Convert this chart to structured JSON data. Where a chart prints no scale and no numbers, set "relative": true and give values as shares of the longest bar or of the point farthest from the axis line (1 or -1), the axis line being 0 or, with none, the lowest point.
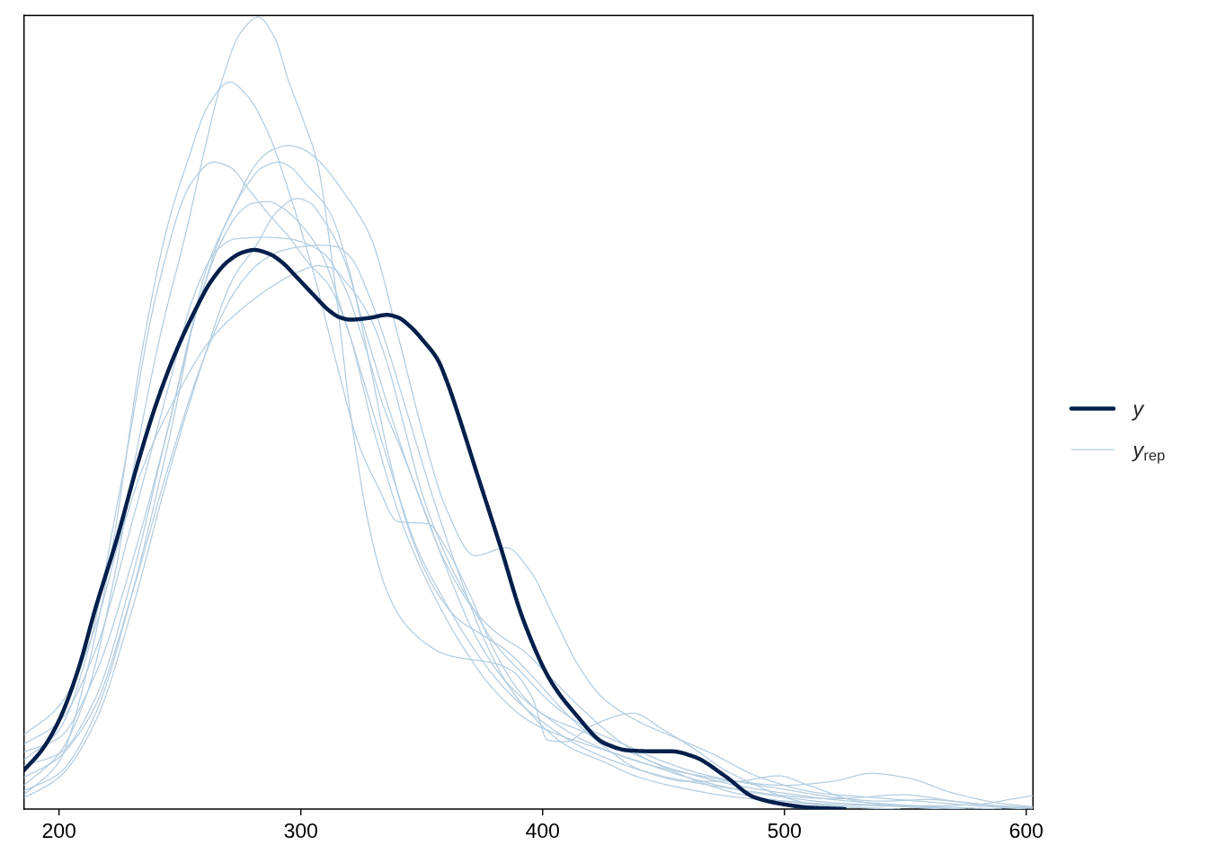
{
  "chart_data": {
    "type": "line",
    "relative": true,
    "xlim": [
      185.5,
      602.8
    ],
    "xticks": [
      200,
      300,
      400,
      500,
      600
    ],
    "tick_labels": "x",
    "legend": "right",
    "grid": false,
    "series": [
      {
        "name": "y",
        "color": "#011f4b",
        "x": [
          185.5,
          193,
          200,
          207.8,
          215.2,
          223.9,
          232.4,
          240,
          248,
          256,
          263,
          270,
          276,
          280.7,
          287,
          292,
          298.5,
          305,
          311.9,
          316,
          320.4,
          328,
          335.6,
          340,
          345.7,
          351,
          356.5,
          361,
          365,
          372.4,
          382.4,
          392.1,
          403.3,
          413.3,
          425.6,
          435.6,
          445,
          453,
          462.7,
          475.3,
          487.5,
          499.8,
          510,
          525
        ],
        "values": [
          0.049,
          0.075,
          0.112,
          0.175,
          0.255,
          0.341,
          0.435,
          0.51,
          0.575,
          0.628,
          0.667,
          0.692,
          0.703,
          0.706,
          0.701,
          0.691,
          0.671,
          0.65,
          0.629,
          0.621,
          0.618,
          0.62,
          0.624,
          0.621,
          0.608,
          0.59,
          0.568,
          0.535,
          0.499,
          0.428,
          0.333,
          0.238,
          0.162,
          0.121,
          0.083,
          0.074,
          0.073,
          0.073,
          0.066,
          0.042,
          0.015,
          0.006,
          0.002,
          0
        ]
      },
      {
        "name": "y$_{rep}$",
        "color": "#b3cde0",
        "x": [
          185.5,
          200,
          212,
          222,
          232,
          242,
          252.8,
          260,
          267.2,
          275,
          282.4,
          289,
          295.1,
          301,
          306.9,
          313,
          320.5,
          328,
          335,
          341.6,
          351.3,
          360,
          367.6,
          378.7,
          387.2,
          395.8,
          402.1,
          409.5,
          420.7,
          437.4,
          450,
          462.7,
          475,
          487.5,
          500,
          512.3,
          530,
          548
        ],
        "values": [
          0.03,
          0.07,
          0.15,
          0.28,
          0.45,
          0.6,
          0.732,
          0.83,
          0.918,
          0.98,
          1.0,
          0.975,
          0.918,
          0.87,
          0.815,
          0.69,
          0.5,
          0.36,
          0.28,
          0.24,
          0.21,
          0.195,
          0.19,
          0.185,
          0.175,
          0.14,
          0.087,
          0.085,
          0.106,
          0.121,
          0.1,
          0.076,
          0.05,
          0.031,
          0.015,
          0.006,
          0.002,
          0
        ]
      },
      {
        "color": "#b3cde0",
        "x": [
          185.5,
          200,
          212,
          222,
          234.3,
          244.5,
          252.8,
          262,
          270.6,
          278,
          287,
          295,
          305,
          315,
          324,
          331.6,
          340.2,
          352.7,
          360,
          370,
          380,
          390,
          400,
          415,
          430,
          445,
          460,
          480,
          500,
          520,
          545
        ],
        "values": [
          0.018,
          0.06,
          0.18,
          0.33,
          0.578,
          0.732,
          0.815,
          0.89,
          0.918,
          0.9,
          0.85,
          0.78,
          0.68,
          0.56,
          0.46,
          0.409,
          0.363,
          0.36,
          0.33,
          0.27,
          0.2,
          0.15,
          0.12,
          0.1,
          0.08,
          0.06,
          0.04,
          0.02,
          0.01,
          0.004,
          0
        ]
      },
      {
        "color": "#b3cde0",
        "x": [
          185.5,
          200,
          212,
          225,
          241,
          254.6,
          263.9,
          271,
          278.1,
          287,
          295.2,
          303,
          311.9,
          320,
          330,
          342,
          355,
          368,
          380,
          395,
          410,
          425,
          440,
          460,
          480,
          500,
          520,
          540,
          570,
          590
        ],
        "values": [
          0.062,
          0.1,
          0.2,
          0.4,
          0.66,
          0.79,
          0.817,
          0.81,
          0.784,
          0.75,
          0.722,
          0.69,
          0.66,
          0.6,
          0.48,
          0.36,
          0.27,
          0.2,
          0.15,
          0.11,
          0.09,
          0.075,
          0.06,
          0.04,
          0.025,
          0.015,
          0.008,
          0.005,
          0.002,
          0
        ]
      },
      {
        "color": "#b3cde0",
        "x": [
          185.5,
          200,
          215,
          230,
          245,
          261.4,
          271.4,
          281.6,
          288,
          295.1,
          301,
          306.9,
          318.8,
          328.9,
          340,
          350,
          360,
          372,
          385,
          395,
          405,
          415,
          425,
          440,
          455,
          470,
          490,
          515,
          535,
          555,
          580,
          600
        ],
        "values": [
          0.023,
          0.045,
          0.12,
          0.27,
          0.46,
          0.686,
          0.754,
          0.815,
          0.832,
          0.838,
          0.833,
          0.82,
          0.774,
          0.722,
          0.6,
          0.48,
          0.38,
          0.32,
          0.33,
          0.3,
          0.24,
          0.18,
          0.14,
          0.11,
          0.09,
          0.07,
          0.04,
          0.02,
          0.015,
          0.01,
          0.004,
          0
        ]
      },
      {
        "color": "#b3cde0",
        "x": [
          185.5,
          200,
          215,
          230,
          245,
          258,
          268,
          278.2,
          284,
          290.9,
          296,
          301.9,
          311.9,
          320,
          328,
          336,
          345,
          355,
          365,
          375,
          385,
          395,
          410,
          425,
          440,
          460,
          480,
          497.5,
          510,
          530,
          550,
          565
        ],
        "values": [
          0.055,
          0.07,
          0.14,
          0.29,
          0.48,
          0.64,
          0.733,
          0.79,
          0.81,
          0.817,
          0.81,
          0.79,
          0.754,
          0.68,
          0.57,
          0.45,
          0.35,
          0.28,
          0.24,
          0.22,
          0.2,
          0.17,
          0.12,
          0.08,
          0.05,
          0.035,
          0.035,
          0.042,
          0.03,
          0.01,
          0.003,
          0
        ]
      },
      {
        "color": "#b3cde0",
        "x": [
          185.5,
          200,
          215,
          230,
          245,
          256,
          266.4,
          274.8,
          280,
          286.6,
          292,
          298.5,
          308.5,
          318,
          328,
          338,
          348,
          360,
          372,
          385,
          400,
          415,
          430,
          445,
          460,
          480,
          500,
          520,
          549.5,
          570,
          590,
          602.8
        ],
        "values": [
          0.072,
          0.09,
          0.17,
          0.31,
          0.48,
          0.62,
          0.712,
          0.754,
          0.765,
          0.767,
          0.76,
          0.743,
          0.701,
          0.62,
          0.52,
          0.42,
          0.33,
          0.26,
          0.2,
          0.15,
          0.11,
          0.08,
          0.06,
          0.045,
          0.035,
          0.025,
          0.017,
          0.013,
          0.018,
          0.01,
          0.004,
          0.002
        ]
      },
      {
        "color": "#b3cde0",
        "x": [
          185.5,
          200,
          215,
          230,
          245,
          260,
          272,
          281.6,
          290,
          298.5,
          304,
          308.5,
          317,
          327,
          337,
          347,
          360,
          372,
          382,
          392,
          402,
          415,
          430,
          445,
          460,
          480,
          500,
          520,
          540,
          560,
          580,
          595,
          602.8
        ],
        "values": [
          0.014,
          0.04,
          0.11,
          0.25,
          0.42,
          0.57,
          0.67,
          0.712,
          0.754,
          0.771,
          0.765,
          0.748,
          0.701,
          0.6,
          0.5,
          0.41,
          0.31,
          0.25,
          0.22,
          0.2,
          0.17,
          0.13,
          0.09,
          0.06,
          0.045,
          0.03,
          0.02,
          0.012,
          0.007,
          0.004,
          0.006,
          0.013,
          0.017
        ]
      },
      {
        "color": "#b3cde0",
        "x": [
          185.5,
          200,
          215,
          230,
          245,
          256,
          265,
          273,
          285,
          295,
          303,
          310,
          318,
          326,
          334,
          342,
          352,
          362,
          372,
          385,
          400,
          415,
          430,
          445,
          460,
          480,
          500,
          520,
          535.8,
          550,
          570,
          590,
          602.8
        ],
        "values": [
          0.082,
          0.11,
          0.2,
          0.36,
          0.53,
          0.65,
          0.705,
          0.72,
          0.722,
          0.72,
          0.713,
          0.7,
          0.66,
          0.59,
          0.51,
          0.45,
          0.37,
          0.29,
          0.22,
          0.16,
          0.12,
          0.09,
          0.07,
          0.055,
          0.045,
          0.035,
          0.03,
          0.035,
          0.045,
          0.04,
          0.02,
          0.007,
          0.003
        ]
      },
      {
        "color": "#b3cde0",
        "x": [
          185.5,
          200,
          207,
          215,
          230,
          245,
          260,
          272,
          283,
          292,
          300,
          308,
          315,
          321,
          328,
          335,
          345,
          355,
          365,
          375,
          385,
          395,
          410,
          425,
          440,
          460,
          480,
          500,
          520,
          550,
          575
        ],
        "values": [
          0.04,
          0.065,
          0.09,
          0.13,
          0.27,
          0.43,
          0.57,
          0.65,
          0.69,
          0.705,
          0.71,
          0.712,
          0.71,
          0.695,
          0.65,
          0.59,
          0.49,
          0.39,
          0.3,
          0.22,
          0.16,
          0.12,
          0.08,
          0.06,
          0.04,
          0.025,
          0.015,
          0.01,
          0.006,
          0.003,
          0
        ]
      },
      {
        "color": "#b3cde0",
        "x": [
          185.5,
          200,
          215,
          225,
          235,
          250,
          262,
          275,
          286.6,
          298,
          306.9,
          313,
          318.8,
          328.9,
          336,
          343,
          350,
          360,
          370,
          380,
          392,
          405,
          420,
          435,
          450,
          465,
          480,
          500,
          520,
          540,
          560,
          575,
          590,
          602.8
        ],
        "values": [
          0.094,
          0.13,
          0.23,
          0.34,
          0.434,
          0.53,
          0.59,
          0.63,
          0.657,
          0.677,
          0.686,
          0.683,
          0.665,
          0.619,
          0.56,
          0.48,
          0.4,
          0.32,
          0.26,
          0.21,
          0.17,
          0.13,
          0.1,
          0.08,
          0.06,
          0.045,
          0.035,
          0.025,
          0.015,
          0.01,
          0.012,
          0.008,
          0.003,
          0.001
        ]
      }
    ]
  }
}
